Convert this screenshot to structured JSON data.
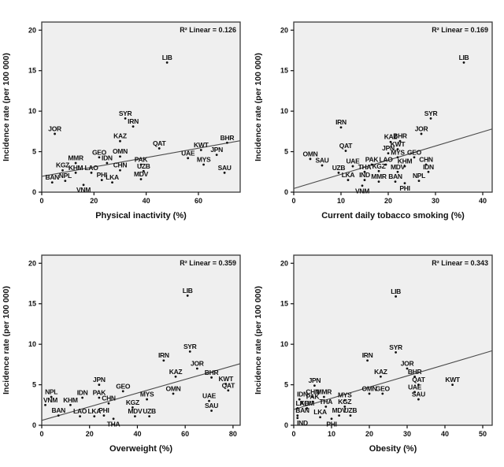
{
  "colors": {
    "page_bg": "#ffffff",
    "ink": "#111111",
    "plot_bg": "#efefef",
    "box_border": "#3a3a3a",
    "fit_line": "#4a4a4a",
    "point": "#111111"
  },
  "chart_data": [
    {
      "type": "scatter",
      "title": "",
      "xlabel": "Physical inactivity (%)",
      "ylabel": "Incidence rate (per 100 000)",
      "r2_label": "R² Linear = 0.126",
      "xlim": [
        0,
        76
      ],
      "xticks": [
        0,
        20,
        40,
        60
      ],
      "ylim": [
        0,
        21
      ],
      "yticks": [
        0,
        5,
        10,
        15,
        20
      ],
      "grid": false,
      "legend": "none",
      "fit_line": {
        "x1": 0,
        "y1": 1.95,
        "x2": 76,
        "y2": 6.35
      },
      "points": [
        {
          "label": "BAN",
          "x": 4,
          "y": 1.2
        },
        {
          "label": "NPL",
          "x": 9,
          "y": 1.4
        },
        {
          "label": "VNM",
          "x": 16,
          "y": 0.9,
          "label_side": "below"
        },
        {
          "label": "KGZ",
          "x": 8,
          "y": 2.7
        },
        {
          "label": "KHM",
          "x": 13,
          "y": 2.4
        },
        {
          "label": "LAO",
          "x": 19,
          "y": 2.4
        },
        {
          "label": "MMR",
          "x": 13,
          "y": 3.6
        },
        {
          "label": "PHI",
          "x": 23,
          "y": 1.5
        },
        {
          "label": "LKA",
          "x": 27,
          "y": 1.2
        },
        {
          "label": "GEO",
          "x": 22,
          "y": 4.3
        },
        {
          "label": "IDN",
          "x": 25,
          "y": 3.6
        },
        {
          "label": "OMN",
          "x": 30,
          "y": 4.4
        },
        {
          "label": "CHN",
          "x": 30,
          "y": 2.7
        },
        {
          "label": "PAK",
          "x": 38,
          "y": 3.4
        },
        {
          "label": "UZB",
          "x": 39,
          "y": 2.6
        },
        {
          "label": "MDV",
          "x": 38,
          "y": 1.6
        },
        {
          "label": "KAZ",
          "x": 30,
          "y": 6.3
        },
        {
          "label": "SYR",
          "x": 32,
          "y": 9.1
        },
        {
          "label": "IRN",
          "x": 35,
          "y": 8.1
        },
        {
          "label": "JOR",
          "x": 5,
          "y": 7.2
        },
        {
          "label": "LIB",
          "x": 48,
          "y": 16.0
        },
        {
          "label": "QAT",
          "x": 45,
          "y": 5.4
        },
        {
          "label": "UAE",
          "x": 56,
          "y": 4.2
        },
        {
          "label": "KWT",
          "x": 61,
          "y": 5.2
        },
        {
          "label": "JPN",
          "x": 67,
          "y": 4.6
        },
        {
          "label": "MYS",
          "x": 62,
          "y": 3.4
        },
        {
          "label": "SAU",
          "x": 70,
          "y": 2.4
        },
        {
          "label": "BHR",
          "x": 71,
          "y": 6.1
        }
      ]
    },
    {
      "type": "scatter",
      "title": "",
      "xlabel": "Current daily tobacco smoking (%)",
      "ylabel": "Incidence rate (per 100 000)",
      "r2_label": "R² Linear = 0.169",
      "xlim": [
        0,
        42
      ],
      "xticks": [
        0,
        10,
        20,
        30,
        40
      ],
      "ylim": [
        0,
        21
      ],
      "yticks": [
        0,
        5,
        10,
        15,
        20
      ],
      "grid": false,
      "legend": "none",
      "fit_line": {
        "x1": 0,
        "y1": 0.45,
        "x2": 42,
        "y2": 7.8
      },
      "points": [
        {
          "label": "OMN",
          "x": 3.5,
          "y": 4.1
        },
        {
          "label": "SAU",
          "x": 6,
          "y": 3.3
        },
        {
          "label": "UZB",
          "x": 9.5,
          "y": 2.4
        },
        {
          "label": "QAT",
          "x": 11,
          "y": 5.1
        },
        {
          "label": "IRN",
          "x": 10,
          "y": 8.0
        },
        {
          "label": "UAE",
          "x": 12.5,
          "y": 3.2
        },
        {
          "label": "LKA",
          "x": 11.5,
          "y": 1.5
        },
        {
          "label": "THA",
          "x": 15,
          "y": 2.5
        },
        {
          "label": "IND",
          "x": 15,
          "y": 1.5
        },
        {
          "label": "VNM",
          "x": 14.5,
          "y": 0.8,
          "label_side": "below"
        },
        {
          "label": "PAK",
          "x": 16.5,
          "y": 3.4
        },
        {
          "label": "KGZ",
          "x": 18,
          "y": 2.6
        },
        {
          "label": "MMR",
          "x": 18,
          "y": 1.3
        },
        {
          "label": "JPN",
          "x": 20,
          "y": 4.8
        },
        {
          "label": "LAO",
          "x": 19.5,
          "y": 3.4
        },
        {
          "label": "KAZ",
          "x": 20.5,
          "y": 6.2
        },
        {
          "label": "BHR",
          "x": 22.5,
          "y": 6.3
        },
        {
          "label": "KWT",
          "x": 22,
          "y": 5.3
        },
        {
          "label": "MYS",
          "x": 22,
          "y": 4.3
        },
        {
          "label": "MDV",
          "x": 22,
          "y": 2.5
        },
        {
          "label": "BAN",
          "x": 21.5,
          "y": 1.3
        },
        {
          "label": "KHM",
          "x": 23.5,
          "y": 3.2
        },
        {
          "label": "PHI",
          "x": 23.5,
          "y": 1.1,
          "label_side": "below"
        },
        {
          "label": "GEO",
          "x": 25.5,
          "y": 4.3
        },
        {
          "label": "NPL",
          "x": 26.5,
          "y": 1.4
        },
        {
          "label": "JOR",
          "x": 27,
          "y": 7.2
        },
        {
          "label": "CHN",
          "x": 28,
          "y": 3.4
        },
        {
          "label": "IDN",
          "x": 28.5,
          "y": 2.5
        },
        {
          "label": "SYR",
          "x": 29,
          "y": 9.1
        },
        {
          "label": "LIB",
          "x": 36,
          "y": 16.0
        }
      ]
    },
    {
      "type": "scatter",
      "title": "",
      "xlabel": "Overweight (%)",
      "ylabel": "Incidence rate (per 100 000)",
      "r2_label": "R² Linear = 0.359",
      "xlim": [
        0,
        83
      ],
      "xticks": [
        0,
        20,
        40,
        60,
        80
      ],
      "ylim": [
        0,
        21
      ],
      "yticks": [
        0,
        5,
        10,
        15,
        20
      ],
      "grid": false,
      "legend": "none",
      "fit_line": {
        "x1": 0,
        "y1": 0.6,
        "x2": 83,
        "y2": 7.6
      },
      "points": [
        {
          "label": "NPL",
          "x": 4,
          "y": 3.5
        },
        {
          "label": "VNM",
          "x": 1.5,
          "y": 2.5
        },
        {
          "label": "KHM",
          "x": 12,
          "y": 2.5
        },
        {
          "label": "BAN",
          "x": 7,
          "y": 1.2
        },
        {
          "label": "LAO",
          "x": 16,
          "y": 1.1
        },
        {
          "label": "LKA",
          "x": 22,
          "y": 1.1
        },
        {
          "label": "PHI",
          "x": 26,
          "y": 1.2
        },
        {
          "label": "THA",
          "x": 30,
          "y": 0.8,
          "label_side": "below"
        },
        {
          "label": "IDN",
          "x": 17,
          "y": 3.4
        },
        {
          "label": "PAK",
          "x": 24,
          "y": 3.4
        },
        {
          "label": "CHN",
          "x": 28,
          "y": 2.7
        },
        {
          "label": "JPN",
          "x": 24,
          "y": 5.0
        },
        {
          "label": "GEO",
          "x": 34,
          "y": 4.2
        },
        {
          "label": "MYS",
          "x": 44,
          "y": 3.2
        },
        {
          "label": "KGZ",
          "x": 38,
          "y": 2.2
        },
        {
          "label": "MDV",
          "x": 39,
          "y": 1.1
        },
        {
          "label": "UZB",
          "x": 45,
          "y": 1.1
        },
        {
          "label": "IRN",
          "x": 51,
          "y": 8.0
        },
        {
          "label": "KAZ",
          "x": 56,
          "y": 6.0
        },
        {
          "label": "OMN",
          "x": 55,
          "y": 3.9
        },
        {
          "label": "SYR",
          "x": 62,
          "y": 9.1
        },
        {
          "label": "LIB",
          "x": 61,
          "y": 16.0
        },
        {
          "label": "JOR",
          "x": 65,
          "y": 7.0
        },
        {
          "label": "BHR",
          "x": 71,
          "y": 5.9
        },
        {
          "label": "KWT",
          "x": 77,
          "y": 5.1
        },
        {
          "label": "QAT",
          "x": 78,
          "y": 4.3
        },
        {
          "label": "UAE",
          "x": 70,
          "y": 3.0
        },
        {
          "label": "SAU",
          "x": 71,
          "y": 1.8
        }
      ]
    },
    {
      "type": "scatter",
      "title": "",
      "xlabel": "Obesity (%)",
      "ylabel": "Incidence rate (per 100 000)",
      "r2_label": "R² Linear = 0.343",
      "xlim": [
        0,
        52.5
      ],
      "xticks": [
        0,
        10,
        20,
        30,
        40,
        50
      ],
      "ylim": [
        0,
        21
      ],
      "yticks": [
        0,
        5,
        10,
        15,
        20
      ],
      "grid": false,
      "legend": "none",
      "fit_line": {
        "x1": 0,
        "y1": 1.95,
        "x2": 52.5,
        "y2": 9.2
      },
      "points": [
        {
          "label": "IDN",
          "x": 1.5,
          "y": 3.2
        },
        {
          "label": "LAO",
          "x": 1,
          "y": 2.1
        },
        {
          "label": "BAN",
          "x": 1,
          "y": 1.2
        },
        {
          "label": "IND",
          "x": 1,
          "y": 0.9,
          "label_side": "below"
        },
        {
          "label": "CHN",
          "x": 5,
          "y": 3.5
        },
        {
          "label": "MMR",
          "x": 8,
          "y": 3.5
        },
        {
          "label": "JPN",
          "x": 5.5,
          "y": 4.9
        },
        {
          "label": "PAK",
          "x": 5,
          "y": 2.9
        },
        {
          "label": "KHM",
          "x": 3.5,
          "y": 2.1
        },
        {
          "label": "LKA",
          "x": 7,
          "y": 1.0
        },
        {
          "label": "THA",
          "x": 8.5,
          "y": 2.3
        },
        {
          "label": "PHI",
          "x": 10,
          "y": 0.8,
          "label_side": "below"
        },
        {
          "label": "MDV",
          "x": 12,
          "y": 1.2
        },
        {
          "label": "UZB",
          "x": 15,
          "y": 1.2
        },
        {
          "label": "MYS",
          "x": 13.5,
          "y": 3.1
        },
        {
          "label": "KGZ",
          "x": 13.5,
          "y": 2.3
        },
        {
          "label": "OMN",
          "x": 20,
          "y": 3.9
        },
        {
          "label": "GEO",
          "x": 23.5,
          "y": 3.9
        },
        {
          "label": "IRN",
          "x": 19.5,
          "y": 8.0
        },
        {
          "label": "KAZ",
          "x": 23,
          "y": 6.0
        },
        {
          "label": "UAE",
          "x": 32,
          "y": 4.1
        },
        {
          "label": "SAU",
          "x": 33,
          "y": 3.2
        },
        {
          "label": "QAT",
          "x": 33,
          "y": 5.0
        },
        {
          "label": "BHR",
          "x": 32,
          "y": 6.0
        },
        {
          "label": "JOR",
          "x": 30,
          "y": 7.0
        },
        {
          "label": "SYR",
          "x": 27,
          "y": 9.0
        },
        {
          "label": "LIB",
          "x": 27,
          "y": 15.9
        },
        {
          "label": "KWT",
          "x": 42,
          "y": 5.0
        }
      ]
    }
  ]
}
